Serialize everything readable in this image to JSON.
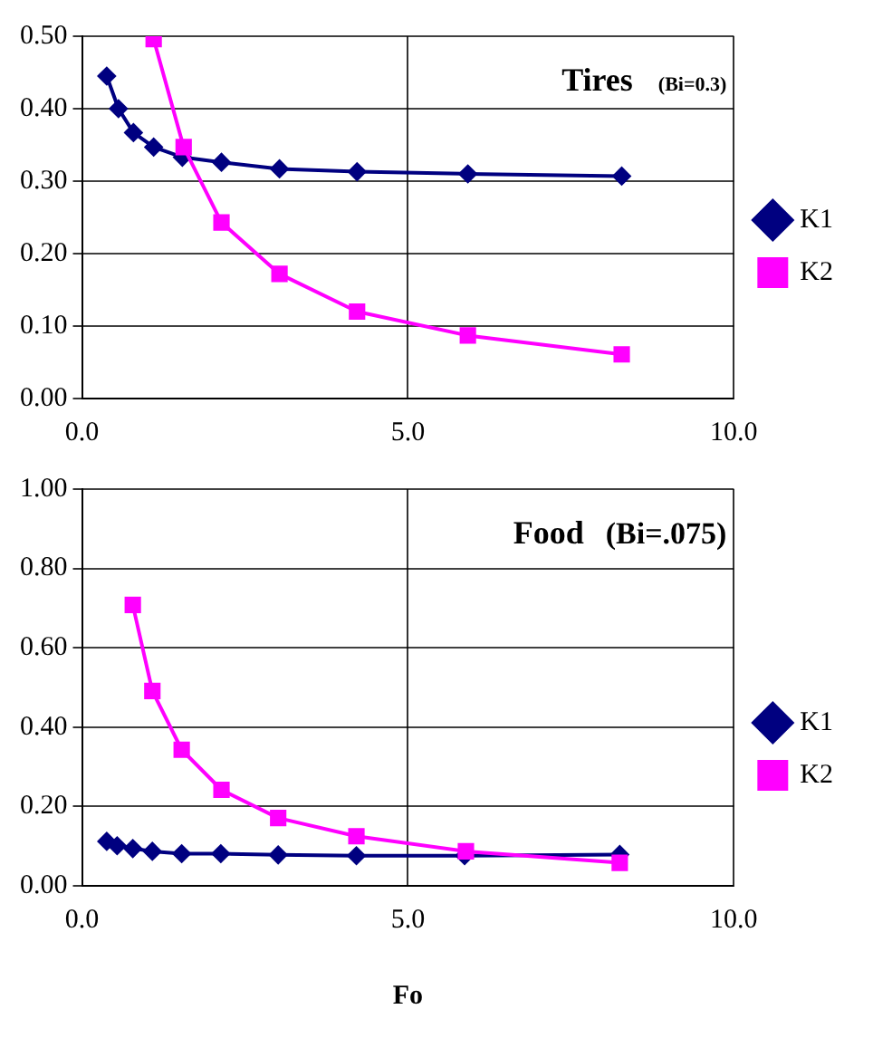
{
  "chart_data": [
    {
      "type": "line",
      "title": "Tires",
      "subtitle": "(Bi=0.3)",
      "xlim": [
        0,
        10
      ],
      "xticks": [
        {
          "value": 0,
          "label": "0.0"
        },
        {
          "value": 5,
          "label": "5.0"
        },
        {
          "value": 10,
          "label": "10.0"
        }
      ],
      "ylim": [
        0,
        0.5
      ],
      "yticks": [
        {
          "value": 0,
          "label": "0.00"
        },
        {
          "value": 0.1,
          "label": "0.10"
        },
        {
          "value": 0.2,
          "label": "0.20"
        },
        {
          "value": 0.3,
          "label": "0.30"
        },
        {
          "value": 0.4,
          "label": "0.40"
        },
        {
          "value": 0.5,
          "label": "0.50"
        }
      ],
      "grid": true,
      "legend": "right",
      "series": [
        {
          "name": "K1",
          "color": "#000080",
          "marker": "diamond",
          "x": [
            0.38,
            0.56,
            0.79,
            1.1,
            1.54,
            2.14,
            3.03,
            4.22,
            5.92,
            8.28
          ],
          "values": [
            0.445,
            0.4,
            0.367,
            0.347,
            0.333,
            0.326,
            0.317,
            0.313,
            0.31,
            0.307
          ]
        },
        {
          "name": "K2",
          "color": "#ff00ff",
          "marker": "square",
          "x": [
            1.1,
            1.56,
            2.14,
            3.03,
            4.22,
            5.92,
            8.28
          ],
          "values": [
            0.496,
            0.347,
            0.243,
            0.172,
            0.12,
            0.087,
            0.061
          ]
        }
      ]
    },
    {
      "type": "line",
      "title": "Food",
      "subtitle": "(Bi=.075)",
      "xlabel": "Fo",
      "xlim": [
        0,
        10
      ],
      "xticks": [
        {
          "value": 0,
          "label": "0.0"
        },
        {
          "value": 5,
          "label": "5.0"
        },
        {
          "value": 10,
          "label": "10.0"
        }
      ],
      "ylim": [
        0,
        1
      ],
      "yticks": [
        {
          "value": 0,
          "label": "0.00"
        },
        {
          "value": 0.2,
          "label": "0.20"
        },
        {
          "value": 0.4,
          "label": "0.40"
        },
        {
          "value": 0.6,
          "label": "0.60"
        },
        {
          "value": 0.8,
          "label": "0.80"
        },
        {
          "value": 1,
          "label": "1.00"
        }
      ],
      "grid": true,
      "legend": "right",
      "series": [
        {
          "name": "K1",
          "color": "#000080",
          "marker": "diamond",
          "x": [
            0.38,
            0.54,
            0.78,
            1.08,
            1.53,
            2.13,
            3.01,
            4.21,
            5.87,
            8.25
          ],
          "values": [
            0.112,
            0.101,
            0.094,
            0.087,
            0.081,
            0.081,
            0.078,
            0.076,
            0.076,
            0.079
          ]
        },
        {
          "name": "K2",
          "color": "#ff00ff",
          "marker": "square",
          "x": [
            0.78,
            1.08,
            1.53,
            2.14,
            3.01,
            4.21,
            5.89,
            8.25
          ],
          "values": [
            0.708,
            0.491,
            0.343,
            0.242,
            0.171,
            0.125,
            0.087,
            0.058
          ]
        }
      ]
    }
  ]
}
